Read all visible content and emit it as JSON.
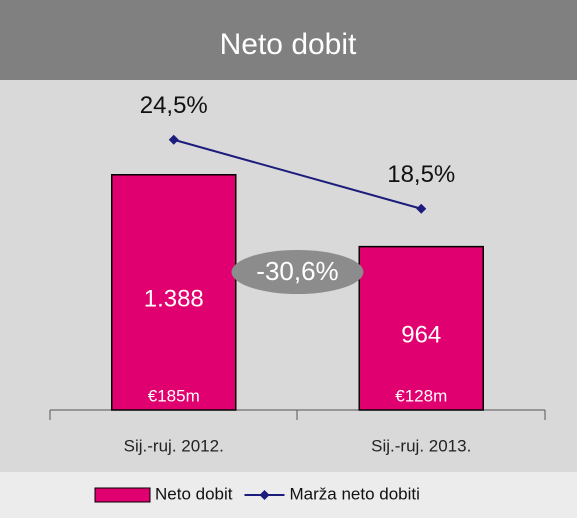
{
  "chart_data": {
    "type": "bar",
    "title": "Neto dobit",
    "categories": [
      "Sij.-ruj. 2012.",
      "Sij.-ruj. 2013."
    ],
    "series": [
      {
        "name": "Neto dobit",
        "type": "bar",
        "color": "#e0006f",
        "values": [
          1388,
          964
        ],
        "value_labels": [
          "1.388",
          "964"
        ]
      },
      {
        "name": "Marža neto dobiti",
        "type": "line",
        "axis": "y2",
        "color": "#1c1c7c",
        "values": [
          24.5,
          18.5
        ],
        "value_labels": [
          "24,5%",
          "18,5%"
        ]
      }
    ],
    "bar_annotations": [
      "€185m",
      "€128m"
    ],
    "change_label": "-30,6%",
    "ylim": [
      0,
      1900
    ],
    "y2lim": [
      1,
      29
    ],
    "legend": "bottom"
  }
}
